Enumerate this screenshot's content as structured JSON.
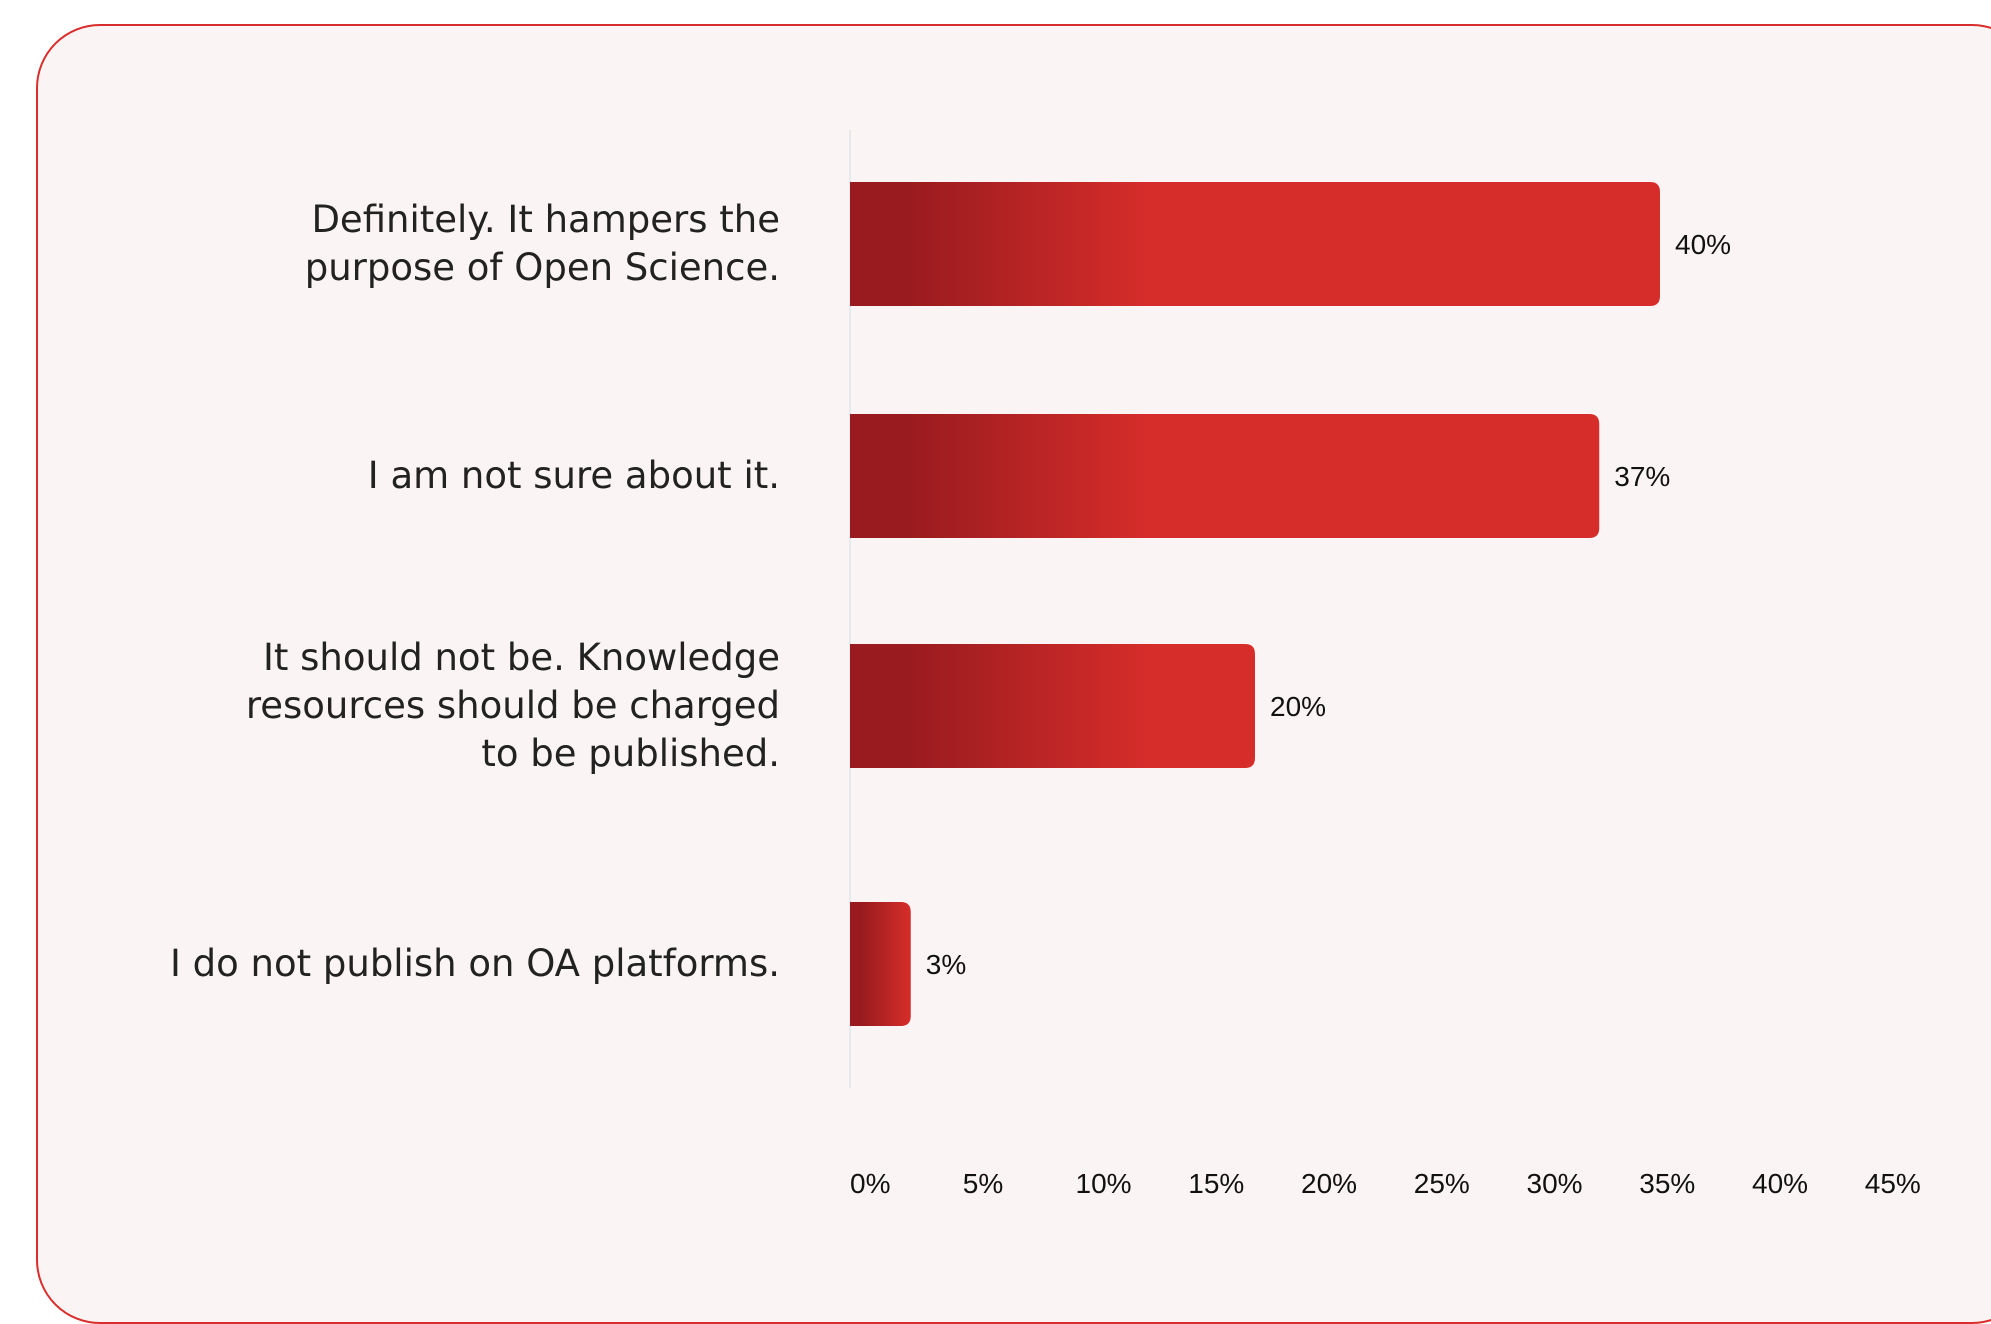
{
  "colors": {
    "bar_dark": "#9a1b1f",
    "bar_light": "#d62d2a",
    "card_border": "#d92d2b",
    "card_background": "#fbf4f4",
    "axis_line": "#dfe3ea"
  },
  "chart_data": {
    "type": "bar",
    "orientation": "horizontal",
    "title": "",
    "xlabel": "",
    "ylabel": "",
    "categories": [
      "Definitely. It hampers the purpose of Open Science.",
      "I am not sure about it.",
      "It should not be. Knowledge resources should be charged to be published.",
      "I do not publish on OA platforms."
    ],
    "category_lines": [
      [
        "Definitely. It hampers the",
        "purpose of Open Science."
      ],
      [
        "I am not sure about it."
      ],
      [
        "It should not be. Knowledge",
        "resources should be charged",
        "to be published."
      ],
      [
        "I do not publish on OA platforms."
      ]
    ],
    "values": [
      40,
      37,
      20,
      3
    ],
    "value_labels": [
      "40%",
      "37%",
      "20%",
      "3%"
    ],
    "xlim": [
      0,
      45
    ],
    "xticks": [
      0,
      5,
      10,
      15,
      20,
      25,
      30,
      35,
      40,
      45
    ],
    "xtick_labels": [
      "0%",
      "5%",
      "10%",
      "15%",
      "20%",
      "25%",
      "30%",
      "35%",
      "40%",
      "45%"
    ],
    "grid": false,
    "legend": false
  }
}
